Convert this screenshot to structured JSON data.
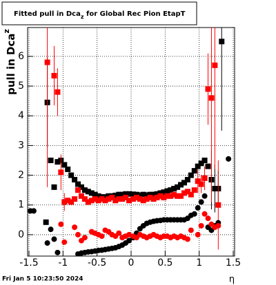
{
  "chart_data": {
    "type": "scatter",
    "title": [
      "Fitted pull in Dca",
      "z",
      " for Global Rec Pion EtapT"
    ],
    "ylabel": [
      "pull in Dca",
      "z"
    ],
    "xlabel": "η",
    "footer": "Fri Jan  5 10:23:50 2024",
    "xlim": [
      -1.52,
      1.52
    ],
    "ylim": [
      -0.72,
      6.97
    ],
    "xticks": [
      -1.5,
      -1,
      -0.5,
      0,
      0.5,
      1,
      1.5
    ],
    "yticks": [
      0,
      1,
      2,
      3,
      4,
      5,
      6
    ],
    "grid": true,
    "series": [
      {
        "color": "#000000",
        "marker": "square",
        "x": [
          -1.25,
          -1.23,
          -1.18,
          -1.13,
          -1.08,
          -1.03,
          -0.98,
          -0.93,
          -0.88,
          -0.83,
          -0.78,
          -0.73,
          -0.68,
          -0.63,
          -0.58,
          -0.53,
          -0.48,
          -0.43,
          -0.38,
          -0.33,
          -0.28,
          -0.23,
          -0.18,
          -0.13,
          -0.08,
          -0.03,
          0.03,
          0.08,
          0.13,
          0.18,
          0.23,
          0.28,
          0.33,
          0.38,
          0.43,
          0.48,
          0.53,
          0.58,
          0.63,
          0.68,
          0.73,
          0.78,
          0.83,
          0.88,
          0.93,
          0.98,
          1.03,
          1.08,
          1.13,
          1.18,
          1.23,
          1.28,
          1.33
        ],
        "values": [
          0.42,
          4.45,
          2.5,
          1.6,
          2.45,
          2.5,
          2.35,
          2.2,
          2.0,
          1.85,
          1.7,
          1.6,
          1.5,
          1.45,
          1.4,
          1.35,
          1.3,
          1.27,
          1.27,
          1.3,
          1.3,
          1.32,
          1.35,
          1.35,
          1.37,
          1.37,
          1.36,
          1.35,
          1.33,
          1.35,
          1.33,
          1.35,
          1.35,
          1.37,
          1.4,
          1.43,
          1.47,
          1.5,
          1.55,
          1.6,
          1.68,
          1.75,
          1.85,
          2.0,
          2.15,
          2.3,
          2.4,
          2.5,
          2.3,
          1.85,
          1.55,
          1.55,
          6.5
        ],
        "errors": [
          null,
          1.5,
          null,
          null,
          null,
          null,
          null,
          null,
          null,
          null,
          null,
          null,
          null,
          null,
          null,
          null,
          null,
          null,
          null,
          null,
          null,
          null,
          null,
          null,
          null,
          null,
          null,
          null,
          null,
          null,
          null,
          null,
          null,
          null,
          null,
          null,
          null,
          null,
          null,
          null,
          null,
          null,
          null,
          null,
          null,
          null,
          null,
          null,
          null,
          1.0,
          0.8,
          0.6,
          3.0
        ]
      },
      {
        "color": "#ff0000",
        "marker": "square",
        "x": [
          -1.23,
          -1.13,
          -1.08,
          -1.03,
          -0.98,
          -0.93,
          -0.88,
          -0.83,
          -0.78,
          -0.73,
          -0.68,
          -0.63,
          -0.58,
          -0.53,
          -0.48,
          -0.43,
          -0.38,
          -0.33,
          -0.28,
          -0.23,
          -0.18,
          -0.13,
          -0.08,
          -0.03,
          0.03,
          0.08,
          0.13,
          0.18,
          0.23,
          0.28,
          0.33,
          0.38,
          0.43,
          0.48,
          0.53,
          0.58,
          0.63,
          0.68,
          0.73,
          0.78,
          0.83,
          0.88,
          0.93,
          0.98,
          1.03,
          1.08,
          1.13,
          1.18,
          1.23,
          1.28
        ],
        "values": [
          5.8,
          5.35,
          4.8,
          2.1,
          1.1,
          1.15,
          1.1,
          1.2,
          1.5,
          1.3,
          1.2,
          1.1,
          1.15,
          1.2,
          1.15,
          1.2,
          1.15,
          1.2,
          1.25,
          1.15,
          1.2,
          1.2,
          1.25,
          1.15,
          1.2,
          1.25,
          1.2,
          1.15,
          1.2,
          1.25,
          1.2,
          1.25,
          1.3,
          1.25,
          1.3,
          1.3,
          1.35,
          1.3,
          1.3,
          1.4,
          1.45,
          1.35,
          1.5,
          1.8,
          1.7,
          1.9,
          4.9,
          4.6,
          5.7,
          1.0
        ],
        "errors": [
          4.2,
          1.0,
          0.8,
          0.6,
          0.3,
          null,
          null,
          null,
          null,
          null,
          null,
          null,
          null,
          null,
          null,
          null,
          null,
          null,
          null,
          null,
          null,
          null,
          null,
          null,
          null,
          null,
          null,
          null,
          null,
          null,
          null,
          null,
          null,
          null,
          null,
          null,
          null,
          null,
          null,
          null,
          null,
          null,
          null,
          0.4,
          0.3,
          0.4,
          1.2,
          3.5,
          3.5,
          1.5
        ]
      },
      {
        "color": "#000000",
        "marker": "circle",
        "x": [
          -1.48,
          -1.43,
          -1.23,
          -1.18,
          -1.13,
          -1.08,
          -0.78,
          -0.73,
          -0.68,
          -0.63,
          -0.58,
          -0.53,
          -0.48,
          -0.43,
          -0.38,
          -0.33,
          -0.28,
          -0.23,
          -0.18,
          -0.13,
          -0.08,
          -0.03,
          0.03,
          0.08,
          0.13,
          0.18,
          0.23,
          0.28,
          0.33,
          0.38,
          0.43,
          0.48,
          0.53,
          0.58,
          0.63,
          0.68,
          0.73,
          0.78,
          0.83,
          0.88,
          0.93,
          0.98,
          1.03,
          1.08,
          1.13,
          1.18,
          1.23,
          1.28,
          1.43
        ],
        "values": [
          0.8,
          0.8,
          -0.28,
          0.18,
          -0.15,
          -0.6,
          -0.65,
          -0.62,
          -0.6,
          -0.58,
          -0.57,
          -0.55,
          -0.53,
          -0.52,
          -0.5,
          -0.48,
          -0.46,
          -0.44,
          -0.4,
          -0.35,
          -0.28,
          -0.2,
          -0.1,
          0.05,
          0.2,
          0.3,
          0.38,
          0.42,
          0.45,
          0.47,
          0.48,
          0.5,
          0.5,
          0.5,
          0.5,
          0.5,
          0.5,
          0.5,
          0.55,
          0.65,
          0.7,
          0.9,
          1.1,
          1.3,
          0.25,
          0.15,
          0.3,
          0.4,
          2.55
        ]
      },
      {
        "color": "#ff0000",
        "marker": "circle",
        "x": [
          -1.03,
          -0.98,
          -0.83,
          -0.78,
          -0.73,
          -0.68,
          -0.58,
          -0.53,
          -0.48,
          -0.43,
          -0.38,
          -0.33,
          -0.28,
          -0.23,
          -0.18,
          -0.13,
          -0.08,
          -0.03,
          0.03,
          0.08,
          0.13,
          0.18,
          0.23,
          0.28,
          0.33,
          0.38,
          0.43,
          0.48,
          0.53,
          0.58,
          0.63,
          0.68,
          0.73,
          0.78,
          0.83,
          0.88,
          0.98,
          1.03,
          1.08,
          1.13,
          1.18,
          1.23,
          1.28
        ],
        "values": [
          0.35,
          -0.25,
          0.25,
          0.0,
          -0.2,
          -0.1,
          0.1,
          0.05,
          0.0,
          -0.05,
          0.15,
          0.1,
          0.0,
          -0.05,
          0.05,
          -0.1,
          -0.05,
          0.0,
          -0.05,
          -0.1,
          0.0,
          -0.05,
          -0.1,
          -0.05,
          0.0,
          -0.05,
          -0.1,
          -0.05,
          -0.05,
          -0.1,
          -0.05,
          -0.1,
          -0.05,
          -0.1,
          -0.15,
          0.15,
          0.0,
          0.3,
          0.7,
          0.55,
          0.35,
          0.25,
          0.3
        ]
      }
    ]
  }
}
